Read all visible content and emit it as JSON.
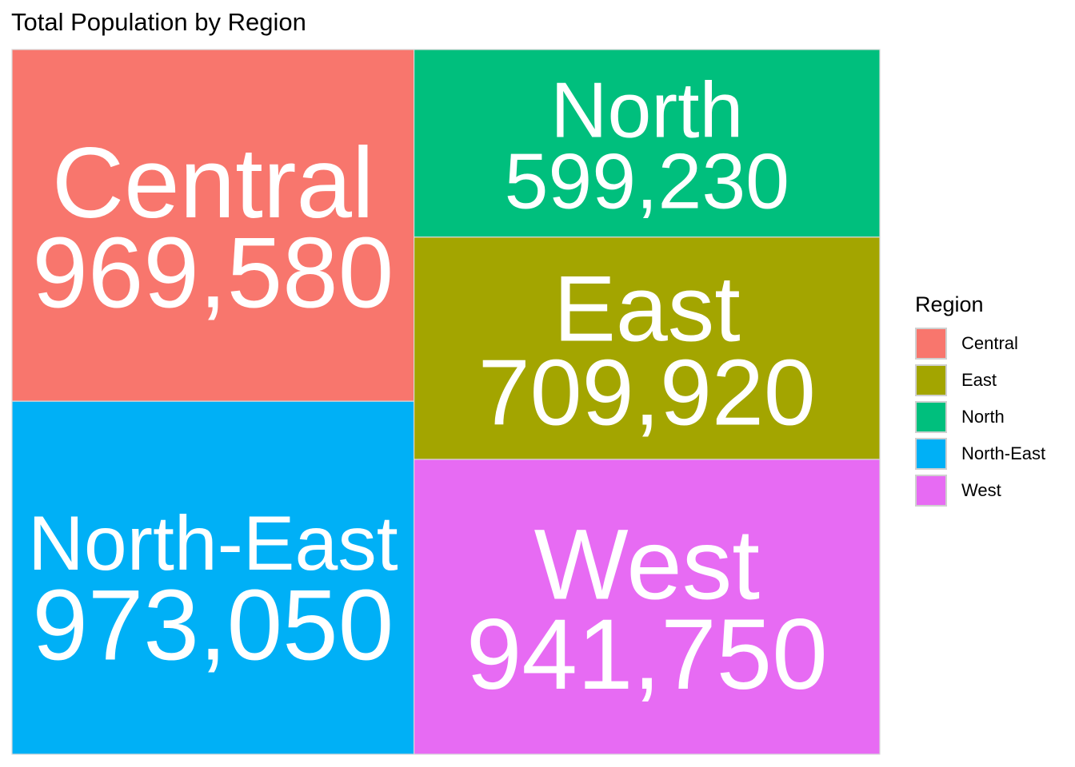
{
  "chart_data": {
    "type": "treemap",
    "title": "Total Population by Region",
    "legend_title": "Region",
    "legend_position": "right",
    "regions": [
      {
        "name": "Central",
        "value": 969580,
        "label": "969,580",
        "color": "#F8766D"
      },
      {
        "name": "East",
        "value": 709920,
        "label": "709,920",
        "color": "#A3A500"
      },
      {
        "name": "North",
        "value": 599230,
        "label": "599,230",
        "color": "#00BF7D"
      },
      {
        "name": "North-East",
        "value": 973050,
        "label": "973,050",
        "color": "#00B0F6"
      },
      {
        "name": "West",
        "value": 941750,
        "label": "941,750",
        "color": "#E76BF3"
      }
    ]
  }
}
